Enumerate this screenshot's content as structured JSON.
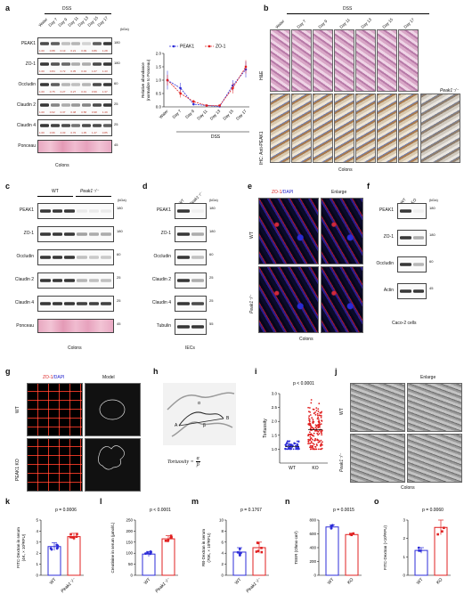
{
  "panels": {
    "a": {
      "letter": "a",
      "group_label": "DSS",
      "lanes": [
        "Water",
        "Day 7",
        "Day 9",
        "Day 11",
        "Day 13",
        "Day 15",
        "Day 17"
      ],
      "kda": "(kDa)",
      "rows": [
        {
          "name": "PEAK1",
          "mw": "180",
          "quant": [
            "1.00",
            "0.88",
            "0.13",
            "0.21",
            "0.09",
            "0.86",
            "1.28"
          ]
        },
        {
          "name": "ZO-1",
          "mw": "180",
          "quant": [
            "1.00",
            "0.84",
            "0.72",
            "0.35",
            "0.34",
            "1.07",
            "1.43"
          ]
        },
        {
          "name": "Occludin",
          "mw": "60",
          "quant": [
            "1.00",
            "0.75",
            "0.27",
            "0.27",
            "0.31",
            "0.99",
            "1.37"
          ]
        },
        {
          "name": "Claudin 2",
          "mw": "25",
          "quant": [
            "1.00",
            "0.62",
            "0.37",
            "0.48",
            "0.58",
            "0.98",
            "1.49"
          ]
        },
        {
          "name": "Claudin 4",
          "mw": "25",
          "quant": [
            "1.00",
            "0.96",
            "4.03",
            "0.70",
            "1.35",
            "1.47",
            "0.85"
          ]
        },
        {
          "name": "Ponceau",
          "mw": "45",
          "quant": []
        }
      ],
      "caption": "Colons"
    },
    "a_chart": {
      "legend_peak1": "PEAK1",
      "legend_zo1": "ZO-1",
      "ylabel": "Relative abundance",
      "ylabel2": "(normalize to Ponceau)",
      "xgroup": "DSS"
    },
    "b": {
      "letter": "b",
      "group_label": "DSS",
      "lanes": [
        "Water",
        "Day 7",
        "Day 9",
        "Day 11",
        "Day 13",
        "Day 15",
        "Day 17"
      ],
      "row1": "H&E",
      "row2": "IHC: Anti-PEAK1",
      "ko_label": "Peak1⁻/⁻",
      "caption": "Colons"
    },
    "c": {
      "letter": "c",
      "wt": "WT",
      "ko": "Peak1⁻/⁻",
      "kda": "(kDa)",
      "rows": [
        {
          "name": "PEAK1",
          "mw": "180"
        },
        {
          "name": "ZO-1",
          "mw": "180"
        },
        {
          "name": "Occludin",
          "mw": "60"
        },
        {
          "name": "Claudin 2",
          "mw": "25"
        },
        {
          "name": "Claudin 4",
          "mw": "25"
        },
        {
          "name": "Ponceau",
          "mw": "45"
        }
      ],
      "caption": "Colons"
    },
    "d": {
      "letter": "d",
      "wt": "WT",
      "ko": "Peak1⁻/⁻",
      "kda": "(kDa)",
      "rows": [
        {
          "name": "PEAK1",
          "mw": "180"
        },
        {
          "name": "ZO-1",
          "mw": "180"
        },
        {
          "name": "Occludin",
          "mw": "60"
        },
        {
          "name": "Claudin 2",
          "mw": "25"
        },
        {
          "name": "Claudin 4",
          "mw": "25"
        },
        {
          "name": "Tubulin",
          "mw": "55"
        }
      ],
      "caption": "IECs"
    },
    "e": {
      "letter": "e",
      "stain": "ZO-1",
      "stain2": "/DAPI",
      "enlarge": "Enlarge",
      "wt": "WT",
      "ko": "Peak1⁻/⁻",
      "caption": "Colons"
    },
    "f": {
      "letter": "f",
      "wt": "WT",
      "ko": "KO",
      "kda": "(kDa)",
      "rows": [
        {
          "name": "PEAK1",
          "mw": "180"
        },
        {
          "name": "ZO-1",
          "mw": "180"
        },
        {
          "name": "Occludin",
          "mw": "60"
        },
        {
          "name": "Actin",
          "mw": "45"
        }
      ],
      "caption": "Caco-2 cells"
    },
    "g": {
      "letter": "g",
      "stain": "ZO-1",
      "stain2": "/DAPI",
      "model": "Model",
      "wt": "WT",
      "ko": "PEAK1 KO"
    },
    "h": {
      "letter": "h",
      "alpha": "α",
      "beta": "β",
      "A": "A",
      "B": "B",
      "formula_lhs": "Tortuosity =",
      "formula_num": "α",
      "formula_den": "β"
    },
    "i": {
      "letter": "i",
      "pval": "p < 0.0001",
      "ylabel": "Tortuosity"
    },
    "j": {
      "letter": "j",
      "enlarge": "Enlarge",
      "wt": "WT",
      "ko": "Peak1⁻/⁻",
      "caption": "Colons"
    },
    "k": {
      "letter": "k",
      "pval": "p = 0.0006",
      "ylabel": "FITC-Dextran in serum",
      "ylabel2": "(4K, × 10³RFU)"
    },
    "l": {
      "letter": "l",
      "pval": "p < 0.0001",
      "ylabel": "Creatinine in serum (μmol/L)"
    },
    "m": {
      "letter": "m",
      "pval": "p = 0.1767",
      "ylabel": "RB-Dextran in serum",
      "ylabel2": "(70K, × 10³RFU)"
    },
    "n": {
      "letter": "n",
      "pval": "p = 0.0015",
      "ylabel": "TEER (Ohms·cm²)"
    },
    "o": {
      "letter": "o",
      "pval": "p = 0.0060",
      "ylabel": "FITC-Dextran (×10³RFU)"
    }
  },
  "chart_data": [
    {
      "id": "a_chart",
      "type": "line",
      "x": [
        "Water",
        "Day 7",
        "Day 9",
        "Day 11",
        "Day 13",
        "Day 15",
        "Day 17"
      ],
      "xlabel": "DSS",
      "ylabel": "Relative abundance (normalize to Ponceau)",
      "ylim": [
        0,
        2.0
      ],
      "yticks": [
        0,
        0.5,
        1.0,
        1.5,
        2.0
      ],
      "series": [
        {
          "name": "PEAK1",
          "color": "#2d2dd8",
          "values": [
            1.0,
            0.7,
            0.1,
            0.05,
            0.02,
            0.8,
            1.4
          ],
          "err": [
            0.35,
            0.2,
            0.05,
            0.03,
            0.02,
            0.2,
            0.3
          ]
        },
        {
          "name": "ZO-1",
          "color": "#e02020",
          "values": [
            1.0,
            0.5,
            0.2,
            0.05,
            0.05,
            0.7,
            1.5
          ],
          "err": [
            0.2,
            0.15,
            0.06,
            0.03,
            0.03,
            0.2,
            0.25
          ]
        }
      ]
    },
    {
      "id": "i",
      "type": "scatter",
      "categories": [
        "WT",
        "KO"
      ],
      "ylim": [
        0.5,
        3.0
      ],
      "yticks": [
        1.0,
        1.5,
        2.0,
        2.5,
        3.0
      ],
      "colors": [
        "#2d2dd8",
        "#e02020"
      ],
      "means": [
        1.1,
        1.7
      ]
    },
    {
      "id": "k",
      "type": "bar",
      "categories": [
        "WT",
        "Peak1⁻/⁻"
      ],
      "values": [
        2.6,
        3.5
      ],
      "err": [
        0.35,
        0.3
      ],
      "ylim": [
        0,
        5
      ],
      "yticks": [
        0,
        1,
        2,
        3,
        4,
        5
      ],
      "colors": [
        "#2d2dd8",
        "#e02020"
      ]
    },
    {
      "id": "l",
      "type": "bar",
      "categories": [
        "WT",
        "Peak1⁻/⁻"
      ],
      "values": [
        96,
        165
      ],
      "err": [
        12,
        14
      ],
      "ylim": [
        0,
        250
      ],
      "yticks": [
        0,
        50,
        100,
        150,
        200,
        250
      ],
      "colors": [
        "#2d2dd8",
        "#e02020"
      ]
    },
    {
      "id": "m",
      "type": "bar",
      "categories": [
        "WT",
        "Peak1⁻/⁻"
      ],
      "values": [
        4.2,
        5.0
      ],
      "err": [
        0.8,
        1.0
      ],
      "ylim": [
        0,
        10
      ],
      "yticks": [
        0,
        2,
        4,
        6,
        8,
        10
      ],
      "colors": [
        "#2d2dd8",
        "#e02020"
      ]
    },
    {
      "id": "n",
      "type": "bar",
      "categories": [
        "WT",
        "KO"
      ],
      "values": [
        700,
        590
      ],
      "err": [
        30,
        20
      ],
      "ylim": [
        0,
        800
      ],
      "yticks": [
        0,
        200,
        400,
        600,
        800
      ],
      "colors": [
        "#2d2dd8",
        "#e02020"
      ]
    },
    {
      "id": "o",
      "type": "bar",
      "categories": [
        "WT",
        "KO"
      ],
      "values": [
        1.35,
        2.6
      ],
      "err": [
        0.15,
        0.4
      ],
      "ylim": [
        0,
        3
      ],
      "yticks": [
        0,
        1,
        2,
        3
      ],
      "colors": [
        "#2d2dd8",
        "#e02020"
      ]
    }
  ]
}
